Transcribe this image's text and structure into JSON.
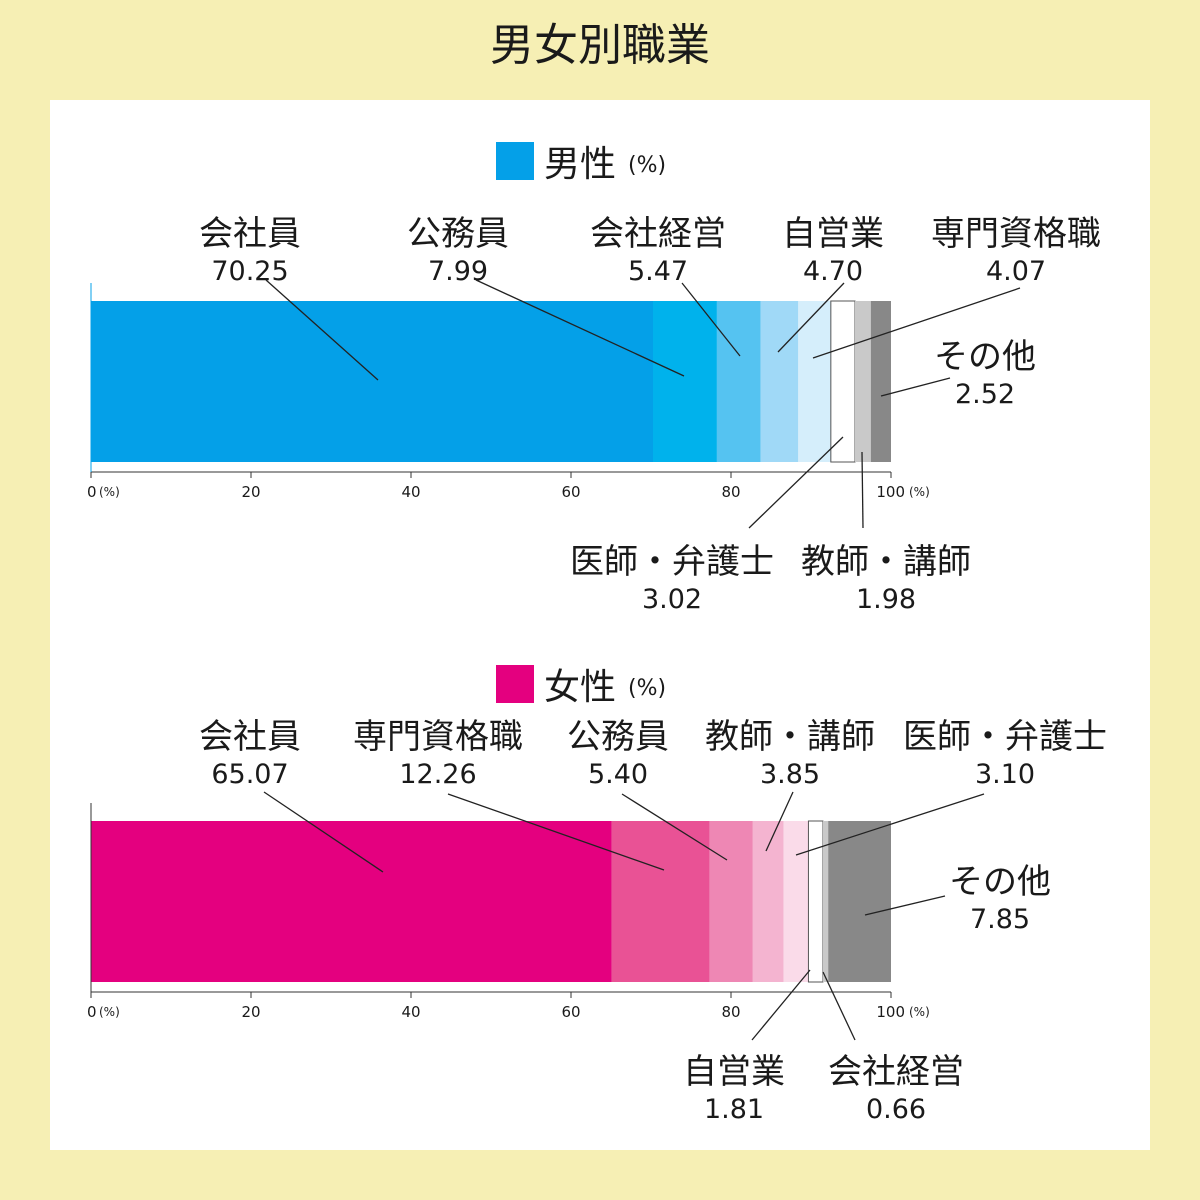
{
  "title": "男女別職業",
  "unit_label": "(%)",
  "colors": {
    "background": "#f6efb4",
    "panel": "#ffffff",
    "male_main": "#04a0e8",
    "female_main": "#e4007f",
    "other_gray": "#888888",
    "text": "#1a1a1a"
  },
  "axis_ticks": [
    "0",
    "20",
    "40",
    "60",
    "80",
    "100"
  ],
  "chart_data": [
    {
      "type": "bar",
      "name": "男性",
      "unit": "(%)",
      "xlim": [
        0,
        100
      ],
      "segments": [
        {
          "label": "会社員",
          "value": 70.25,
          "value_text": "70.25",
          "color": "#04a0e8"
        },
        {
          "label": "公務員",
          "value": 7.99,
          "value_text": "7.99",
          "color": "#00b2ec"
        },
        {
          "label": "会社経営",
          "value": 5.47,
          "value_text": "5.47",
          "color": "#55c3f1"
        },
        {
          "label": "自営業",
          "value": 4.7,
          "value_text": "4.70",
          "color": "#a0d9f7"
        },
        {
          "label": "専門資格職",
          "value": 4.07,
          "value_text": "4.07",
          "color": "#d5eefb"
        },
        {
          "label": "医師・弁護士",
          "value": 3.02,
          "value_text": "3.02",
          "color": "#ffffff"
        },
        {
          "label": "教師・講師",
          "value": 1.98,
          "value_text": "1.98",
          "color": "#c9c9c9"
        },
        {
          "label": "その他",
          "value": 2.52,
          "value_text": "2.52",
          "color": "#888888"
        }
      ]
    },
    {
      "type": "bar",
      "name": "女性",
      "unit": "(%)",
      "xlim": [
        0,
        100
      ],
      "segments": [
        {
          "label": "会社員",
          "value": 65.07,
          "value_text": "65.07",
          "color": "#e4007f"
        },
        {
          "label": "専門資格職",
          "value": 12.26,
          "value_text": "12.26",
          "color": "#e95295"
        },
        {
          "label": "公務員",
          "value": 5.4,
          "value_text": "5.40",
          "color": "#ee87b4"
        },
        {
          "label": "教師・講師",
          "value": 3.85,
          "value_text": "3.85",
          "color": "#f4b4d0"
        },
        {
          "label": "医師・弁護士",
          "value": 3.1,
          "value_text": "3.10",
          "color": "#fadbe9"
        },
        {
          "label": "自営業",
          "value": 1.81,
          "value_text": "1.81",
          "color": "#ffffff"
        },
        {
          "label": "会社経営",
          "value": 0.66,
          "value_text": "0.66",
          "color": "#c9c9c9"
        },
        {
          "label": "その他",
          "value": 7.85,
          "value_text": "7.85",
          "color": "#888888"
        }
      ]
    }
  ]
}
